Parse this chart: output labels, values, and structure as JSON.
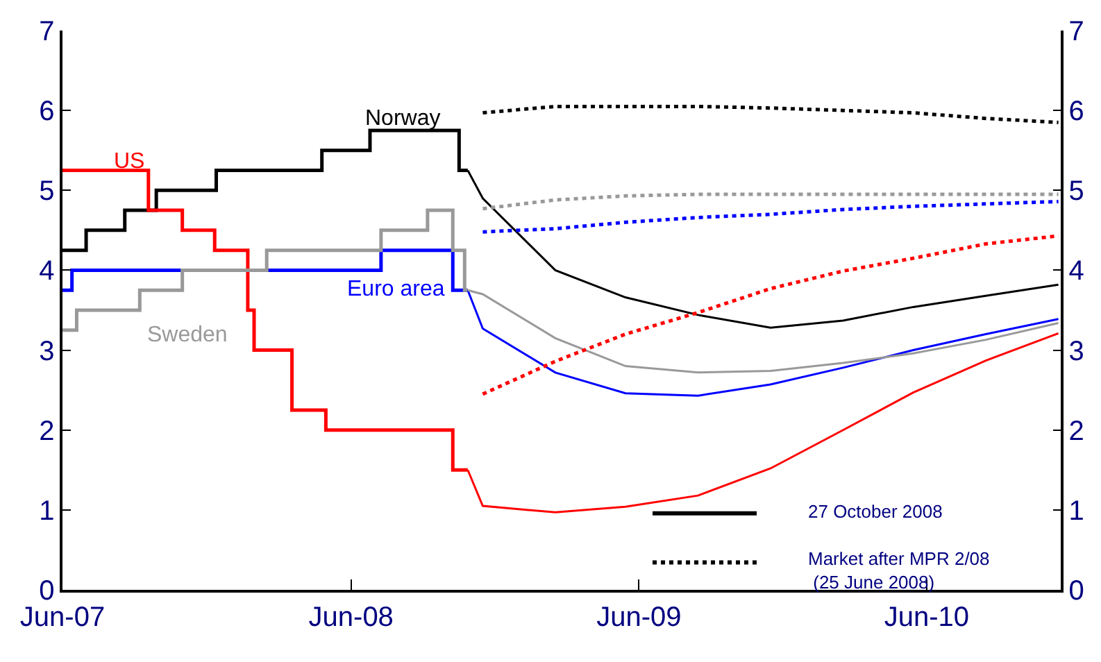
{
  "chart_data": {
    "type": "line",
    "xlim": [
      "2007-06-01",
      "2010-11-18"
    ],
    "xticks": [
      {
        "value": "2007-06-01",
        "label": "Jun-07"
      },
      {
        "value": "2008-06-01",
        "label": "Jun-08"
      },
      {
        "value": "2009-06-01",
        "label": "Jun-09"
      },
      {
        "value": "2010-06-01",
        "label": "Jun-10"
      }
    ],
    "ylim": [
      0,
      7
    ],
    "yticks": [
      0,
      1,
      2,
      3,
      4,
      5,
      6,
      7
    ],
    "y2lim": [
      0,
      7
    ],
    "y2ticks": [
      0,
      1,
      2,
      3,
      4,
      5,
      6,
      7
    ],
    "annotations": [
      "27 October 2008",
      "Market after MPR 2/08\n (25 June 2008)"
    ],
    "series": [
      {
        "name": "Norway",
        "type": "step",
        "color": "#000000",
        "line_style": "solid",
        "x": [
          "2007-06-01",
          "2007-07-01",
          "2007-08-19",
          "2007-09-28",
          "2007-12-13",
          "2008-04-25",
          "2008-06-25",
          "2008-10-16",
          "2008-10-27"
        ],
        "values": [
          4.25,
          4.5,
          4.75,
          5.0,
          5.25,
          5.5,
          5.75,
          5.25,
          5.25
        ]
      },
      {
        "name": "US",
        "type": "step",
        "color": "#ff0000",
        "line_style": "solid",
        "x": [
          "2007-06-01",
          "2007-09-18",
          "2007-10-31",
          "2007-12-11",
          "2008-01-22",
          "2008-01-30",
          "2008-03-18",
          "2008-04-30",
          "2008-10-08",
          "2008-10-27"
        ],
        "values": [
          5.25,
          4.75,
          4.5,
          4.25,
          3.5,
          3.0,
          2.25,
          2.0,
          1.5,
          1.5
        ]
      },
      {
        "name": "Euro area",
        "type": "step",
        "color": "#0000ff",
        "line_style": "solid",
        "x": [
          "2007-06-01",
          "2007-06-13",
          "2008-07-09",
          "2008-10-08",
          "2008-10-27"
        ],
        "values": [
          3.75,
          4.0,
          4.25,
          3.75,
          3.75
        ]
      },
      {
        "name": "Sweden",
        "type": "step",
        "color": "#999999",
        "line_style": "solid",
        "x": [
          "2007-06-01",
          "2007-06-19",
          "2007-09-07",
          "2007-10-31",
          "2008-02-15",
          "2008-07-09",
          "2008-09-06",
          "2008-10-08",
          "2008-10-23",
          "2008-10-27"
        ],
        "values": [
          3.25,
          3.5,
          3.75,
          4.0,
          4.25,
          4.5,
          4.75,
          4.25,
          3.75,
          3.75
        ]
      },
      {
        "color": "#000000",
        "line_style": "solid",
        "x": [
          "2008-10-27",
          "2008-11-15",
          "2009-02-15",
          "2009-05-15",
          "2009-08-15",
          "2009-11-15",
          "2010-02-15",
          "2010-05-15",
          "2010-08-15",
          "2010-11-15"
        ],
        "values": [
          5.25,
          4.9,
          4.0,
          3.66,
          3.44,
          3.28,
          3.37,
          3.54,
          3.68,
          3.82
        ]
      },
      {
        "color": "#ff0000",
        "line_style": "solid",
        "x": [
          "2008-10-27",
          "2008-11-15",
          "2009-02-15",
          "2009-05-15",
          "2009-08-15",
          "2009-11-15",
          "2010-02-15",
          "2010-05-15",
          "2010-08-15",
          "2010-11-15"
        ],
        "values": [
          1.5,
          1.05,
          0.97,
          1.04,
          1.18,
          1.52,
          2.0,
          2.47,
          2.87,
          3.21
        ]
      },
      {
        "color": "#0000ff",
        "line_style": "solid",
        "x": [
          "2008-10-27",
          "2008-11-15",
          "2009-02-15",
          "2009-05-15",
          "2009-08-15",
          "2009-11-15",
          "2010-02-15",
          "2010-05-15",
          "2010-08-15",
          "2010-11-15"
        ],
        "values": [
          3.75,
          3.27,
          2.72,
          2.46,
          2.43,
          2.57,
          2.78,
          3.0,
          3.2,
          3.39
        ]
      },
      {
        "color": "#999999",
        "line_style": "solid",
        "x": [
          "2008-10-27",
          "2008-11-15",
          "2009-02-15",
          "2009-05-15",
          "2009-08-15",
          "2009-11-15",
          "2010-02-15",
          "2010-05-15",
          "2010-08-15",
          "2010-11-15"
        ],
        "values": [
          3.75,
          3.7,
          3.15,
          2.8,
          2.72,
          2.74,
          2.84,
          2.96,
          3.13,
          3.34
        ]
      },
      {
        "type": "line",
        "axis": "y2",
        "color": "#000000",
        "line_style": "dotted",
        "x": [
          "2008-11-15",
          "2009-02-15",
          "2009-05-15",
          "2009-08-15",
          "2009-11-15",
          "2010-02-15",
          "2010-05-15",
          "2010-08-15",
          "2010-11-15"
        ],
        "values": [
          5.97,
          6.05,
          6.05,
          6.05,
          6.03,
          6.0,
          5.97,
          5.9,
          5.85
        ]
      },
      {
        "type": "line",
        "axis": "y2",
        "color": "#999999",
        "line_style": "dotted",
        "x": [
          "2008-11-15",
          "2009-02-15",
          "2009-05-15",
          "2009-08-15",
          "2009-11-15",
          "2010-02-15",
          "2010-05-15",
          "2010-08-15",
          "2010-11-15"
        ],
        "values": [
          4.77,
          4.88,
          4.93,
          4.95,
          4.95,
          4.95,
          4.95,
          4.95,
          4.95
        ]
      },
      {
        "type": "line",
        "axis": "y2",
        "color": "#0000ff",
        "line_style": "dotted",
        "x": [
          "2008-11-15",
          "2009-02-15",
          "2009-05-15",
          "2009-08-15",
          "2009-11-15",
          "2010-02-15",
          "2010-05-15",
          "2010-08-15",
          "2010-11-15"
        ],
        "values": [
          4.48,
          4.52,
          4.6,
          4.66,
          4.7,
          4.76,
          4.8,
          4.83,
          4.86
        ]
      },
      {
        "type": "line",
        "axis": "y2",
        "color": "#ff0000",
        "line_style": "dotted",
        "x": [
          "2008-11-15",
          "2009-02-15",
          "2009-05-15",
          "2009-08-15",
          "2009-11-15",
          "2010-02-15",
          "2010-05-15",
          "2010-08-15",
          "2010-11-15"
        ],
        "values": [
          2.45,
          2.86,
          3.2,
          3.47,
          3.77,
          3.99,
          4.15,
          4.33,
          4.43
        ]
      }
    ]
  }
}
